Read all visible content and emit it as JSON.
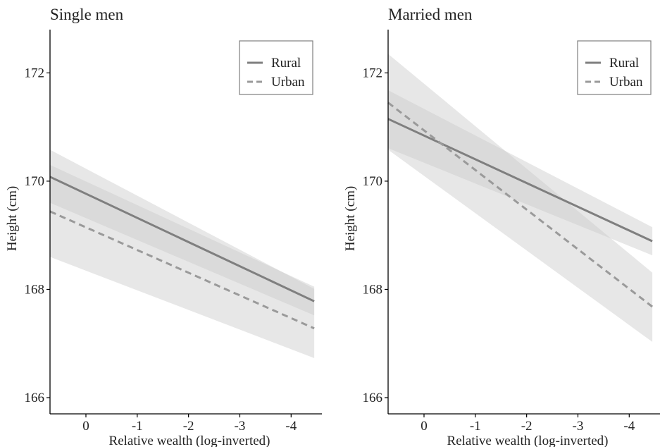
{
  "colors": {
    "line": "#7f7f7f",
    "band": "#c9c9c9",
    "axis": "#000000",
    "legend_border": "#7f7f7f",
    "text": "#222222"
  },
  "chart_data": [
    {
      "type": "line",
      "title": "Single men",
      "xlabel": "Relative wealth (log-inverted)",
      "ylabel": "Height (cm)",
      "x_reversed": true,
      "xlim": [
        0.7,
        -4.6
      ],
      "ylim": [
        165.7,
        172.8
      ],
      "xticks": [
        0,
        -1,
        -2,
        -3,
        -4
      ],
      "xtick_labels": [
        "0",
        "-1",
        "-2",
        "-3",
        "-4"
      ],
      "yticks": [
        166,
        168,
        170,
        172
      ],
      "ytick_labels": [
        "166",
        "168",
        "170",
        "172"
      ],
      "grid": false,
      "legend": {
        "position": "top-right",
        "entries": [
          "Rural",
          "Urban"
        ]
      },
      "series": [
        {
          "name": "Rural",
          "style": "solid",
          "x": [
            0.7,
            -4.45
          ],
          "y": [
            170.08,
            167.78
          ],
          "ci_lower": [
            169.6,
            167.52
          ],
          "ci_upper": [
            170.3,
            168.05
          ]
        },
        {
          "name": "Urban",
          "style": "dashed",
          "x": [
            0.7,
            -4.45
          ],
          "y": [
            169.44,
            167.28
          ],
          "ci_lower": [
            168.6,
            166.73
          ],
          "ci_upper": [
            170.58,
            168.01
          ]
        }
      ]
    },
    {
      "type": "line",
      "title": "Married men",
      "xlabel": "Relative wealth (log-inverted)",
      "ylabel": "Height (cm)",
      "x_reversed": true,
      "xlim": [
        0.7,
        -4.6
      ],
      "ylim": [
        165.7,
        172.8
      ],
      "xticks": [
        0,
        -1,
        -2,
        -3,
        -4
      ],
      "xtick_labels": [
        "0",
        "-1",
        "-2",
        "-3",
        "-4"
      ],
      "yticks": [
        166,
        168,
        170,
        172
      ],
      "ytick_labels": [
        "166",
        "168",
        "170",
        "172"
      ],
      "grid": false,
      "legend": {
        "position": "top-right",
        "entries": [
          "Rural",
          "Urban"
        ]
      },
      "series": [
        {
          "name": "Rural",
          "style": "solid",
          "x": [
            0.7,
            -4.45
          ],
          "y": [
            171.15,
            168.89
          ],
          "ci_lower": [
            170.61,
            168.63
          ],
          "ci_upper": [
            171.68,
            169.15
          ]
        },
        {
          "name": "Urban",
          "style": "dashed",
          "x": [
            0.7,
            -4.45
          ],
          "y": [
            171.45,
            167.68
          ],
          "ci_lower": [
            170.58,
            167.03
          ],
          "ci_upper": [
            172.35,
            168.31
          ]
        }
      ]
    }
  ]
}
